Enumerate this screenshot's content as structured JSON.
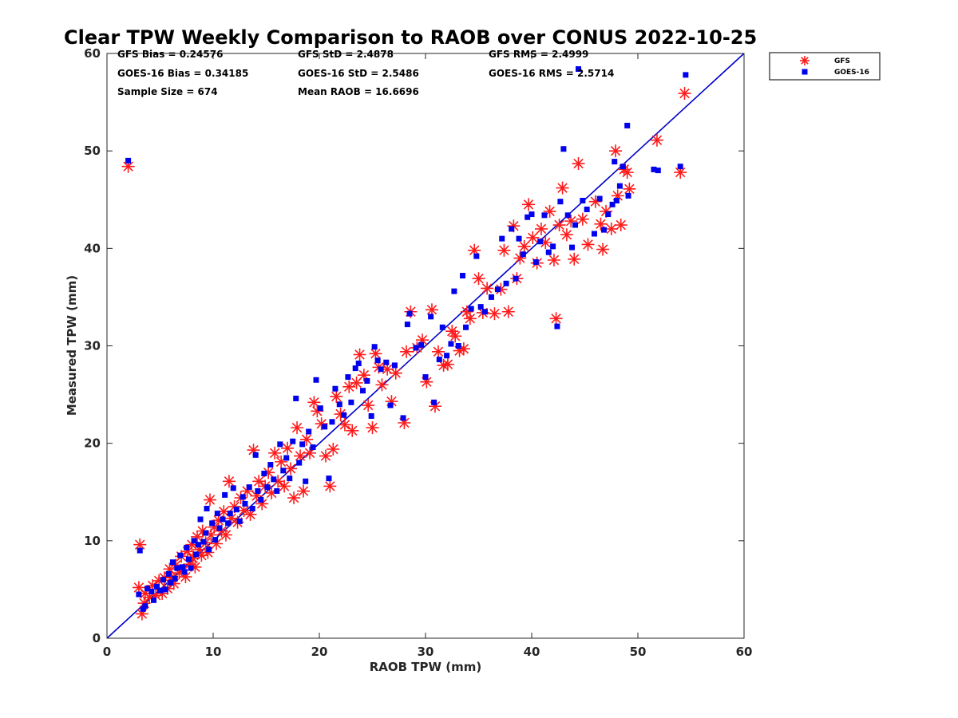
{
  "chart_data": {
    "type": "scatter",
    "title": "Clear TPW Weekly Comparison to RAOB over CONUS 2022-10-25",
    "xlabel": "RAOB TPW (mm)",
    "ylabel": "Measured TPW (mm)",
    "xlim": [
      0,
      60
    ],
    "ylim": [
      0,
      60
    ],
    "x_ticks": [
      "0",
      "10",
      "20",
      "30",
      "40",
      "50",
      "60"
    ],
    "y_ticks": [
      "0",
      "10",
      "20",
      "30",
      "40",
      "50",
      "60"
    ],
    "grid": false,
    "legend_position": "top-right-outside",
    "reference_line": {
      "x": [
        0,
        60
      ],
      "y": [
        0,
        60
      ],
      "color": "#0000cc"
    },
    "stats": [
      "GFS Bias = 0.24576",
      "GFS StD = 2.4878",
      "GFS RMS = 2.4999",
      "GOES-16 Bias = 0.34185",
      "GOES-16 StD = 2.5486",
      "GOES-16 RMS = 2.5714",
      "Sample Size = 674",
      "Mean RAOB = 16.6696"
    ],
    "series": [
      {
        "name": "GFS",
        "marker": "asterisk",
        "color": "#ff1a1a",
        "points": [
          [
            2.0,
            48.4
          ],
          [
            3.1,
            9.6
          ],
          [
            3.0,
            5.2
          ],
          [
            3.3,
            2.5
          ],
          [
            3.5,
            3.6
          ],
          [
            3.6,
            4.6
          ],
          [
            4.0,
            4.2
          ],
          [
            4.3,
            5.4
          ],
          [
            4.6,
            4.4
          ],
          [
            4.9,
            5.9
          ],
          [
            5.2,
            4.6
          ],
          [
            5.4,
            6.2
          ],
          [
            5.7,
            5.1
          ],
          [
            5.9,
            7.1
          ],
          [
            6.1,
            6.3
          ],
          [
            6.3,
            5.6
          ],
          [
            6.5,
            7.5
          ],
          [
            6.8,
            6.7
          ],
          [
            7.0,
            8.4
          ],
          [
            7.2,
            7.0
          ],
          [
            7.4,
            6.3
          ],
          [
            7.6,
            8.9
          ],
          [
            7.8,
            7.6
          ],
          [
            8.0,
            9.6
          ],
          [
            8.1,
            8.2
          ],
          [
            8.3,
            7.3
          ],
          [
            8.5,
            10.4
          ],
          [
            8.7,
            9.1
          ],
          [
            8.9,
            8.5
          ],
          [
            9.0,
            11.0
          ],
          [
            9.3,
            9.8
          ],
          [
            9.5,
            8.8
          ],
          [
            9.7,
            14.2
          ],
          [
            9.8,
            10.6
          ],
          [
            10.1,
            11.4
          ],
          [
            10.3,
            9.7
          ],
          [
            10.5,
            12.1
          ],
          [
            10.8,
            11.0
          ],
          [
            11.0,
            13.0
          ],
          [
            11.2,
            10.6
          ],
          [
            11.5,
            16.1
          ],
          [
            11.7,
            12.3
          ],
          [
            12.0,
            13.5
          ],
          [
            12.3,
            11.9
          ],
          [
            12.6,
            14.4
          ],
          [
            12.9,
            13.1
          ],
          [
            13.2,
            15.1
          ],
          [
            13.5,
            12.7
          ],
          [
            13.8,
            19.3
          ],
          [
            14.1,
            14.6
          ],
          [
            14.3,
            16.1
          ],
          [
            14.6,
            13.8
          ],
          [
            14.9,
            15.6
          ],
          [
            15.2,
            17.0
          ],
          [
            15.5,
            14.9
          ],
          [
            15.8,
            19.0
          ],
          [
            16.1,
            16.1
          ],
          [
            16.4,
            18.1
          ],
          [
            16.7,
            15.6
          ],
          [
            17.0,
            19.5
          ],
          [
            17.3,
            17.4
          ],
          [
            17.6,
            14.4
          ],
          [
            17.9,
            21.6
          ],
          [
            18.2,
            18.7
          ],
          [
            18.5,
            15.1
          ],
          [
            18.8,
            20.4
          ],
          [
            19.1,
            19.0
          ],
          [
            19.5,
            24.2
          ],
          [
            19.8,
            23.3
          ],
          [
            20.2,
            22.0
          ],
          [
            20.6,
            18.7
          ],
          [
            21.0,
            15.6
          ],
          [
            21.3,
            19.4
          ],
          [
            21.6,
            24.8
          ],
          [
            22.0,
            23.0
          ],
          [
            22.4,
            21.9
          ],
          [
            22.8,
            25.8
          ],
          [
            23.1,
            21.3
          ],
          [
            23.5,
            26.2
          ],
          [
            23.8,
            29.1
          ],
          [
            24.2,
            27.0
          ],
          [
            24.6,
            23.9
          ],
          [
            25.0,
            21.6
          ],
          [
            25.3,
            29.2
          ],
          [
            25.6,
            27.8
          ],
          [
            25.9,
            26.0
          ],
          [
            26.4,
            27.6
          ],
          [
            26.8,
            24.3
          ],
          [
            27.2,
            27.2
          ],
          [
            28.0,
            22.1
          ],
          [
            28.2,
            29.4
          ],
          [
            28.6,
            33.5
          ],
          [
            29.2,
            29.8
          ],
          [
            29.7,
            30.6
          ],
          [
            30.1,
            26.3
          ],
          [
            30.6,
            33.7
          ],
          [
            30.9,
            23.8
          ],
          [
            31.2,
            29.4
          ],
          [
            31.7,
            28.0
          ],
          [
            32.1,
            28.1
          ],
          [
            32.5,
            31.5
          ],
          [
            32.8,
            31.0
          ],
          [
            33.2,
            29.5
          ],
          [
            33.6,
            29.7
          ],
          [
            33.9,
            33.5
          ],
          [
            34.2,
            32.8
          ],
          [
            34.6,
            39.8
          ],
          [
            35.0,
            36.9
          ],
          [
            35.4,
            33.4
          ],
          [
            35.8,
            35.9
          ],
          [
            36.5,
            33.3
          ],
          [
            37.1,
            35.8
          ],
          [
            37.4,
            39.8
          ],
          [
            37.8,
            33.5
          ],
          [
            38.3,
            42.3
          ],
          [
            38.6,
            36.9
          ],
          [
            38.9,
            39.0
          ],
          [
            39.3,
            40.2
          ],
          [
            39.7,
            44.5
          ],
          [
            40.1,
            41.1
          ],
          [
            40.5,
            38.5
          ],
          [
            40.9,
            42.0
          ],
          [
            41.3,
            40.6
          ],
          [
            41.7,
            43.8
          ],
          [
            42.1,
            38.8
          ],
          [
            42.3,
            32.8
          ],
          [
            42.6,
            42.4
          ],
          [
            42.9,
            46.2
          ],
          [
            43.3,
            41.4
          ],
          [
            43.7,
            42.8
          ],
          [
            44.0,
            38.9
          ],
          [
            44.4,
            48.7
          ],
          [
            44.8,
            43.0
          ],
          [
            45.3,
            40.4
          ],
          [
            46.0,
            44.8
          ],
          [
            46.5,
            42.5
          ],
          [
            46.7,
            39.9
          ],
          [
            47.0,
            43.8
          ],
          [
            47.5,
            42.0
          ],
          [
            47.9,
            50.0
          ],
          [
            48.1,
            45.4
          ],
          [
            48.4,
            42.4
          ],
          [
            48.7,
            48.1
          ],
          [
            49.0,
            47.8
          ],
          [
            49.2,
            46.1
          ],
          [
            51.8,
            51.1
          ],
          [
            54.0,
            47.8
          ],
          [
            54.4,
            55.9
          ]
        ]
      },
      {
        "name": "GOES-16",
        "marker": "square",
        "color": "#0000ee",
        "points": [
          [
            2.0,
            49.0
          ],
          [
            3.1,
            9.0
          ],
          [
            3.0,
            4.5
          ],
          [
            3.4,
            3.0
          ],
          [
            3.6,
            3.3
          ],
          [
            3.8,
            5.1
          ],
          [
            4.2,
            4.8
          ],
          [
            4.4,
            3.9
          ],
          [
            4.7,
            5.3
          ],
          [
            5.0,
            4.9
          ],
          [
            5.3,
            6.0
          ],
          [
            5.5,
            5.0
          ],
          [
            5.8,
            6.6
          ],
          [
            6.0,
            5.7
          ],
          [
            6.2,
            7.8
          ],
          [
            6.4,
            6.1
          ],
          [
            6.6,
            7.2
          ],
          [
            6.9,
            8.5
          ],
          [
            7.1,
            7.3
          ],
          [
            7.3,
            6.8
          ],
          [
            7.5,
            9.3
          ],
          [
            7.7,
            8.1
          ],
          [
            7.9,
            7.2
          ],
          [
            8.2,
            10.0
          ],
          [
            8.4,
            8.6
          ],
          [
            8.6,
            9.6
          ],
          [
            8.8,
            12.2
          ],
          [
            9.1,
            9.9
          ],
          [
            9.3,
            10.8
          ],
          [
            9.4,
            13.3
          ],
          [
            9.6,
            9.1
          ],
          [
            9.9,
            11.8
          ],
          [
            10.2,
            10.1
          ],
          [
            10.4,
            12.8
          ],
          [
            10.6,
            11.3
          ],
          [
            10.9,
            12.2
          ],
          [
            11.1,
            14.7
          ],
          [
            11.4,
            11.8
          ],
          [
            11.6,
            12.8
          ],
          [
            11.9,
            15.4
          ],
          [
            12.2,
            13.2
          ],
          [
            12.5,
            12.0
          ],
          [
            12.8,
            14.5
          ],
          [
            13.0,
            13.8
          ],
          [
            13.4,
            15.5
          ],
          [
            13.7,
            13.3
          ],
          [
            14.0,
            18.8
          ],
          [
            14.2,
            15.1
          ],
          [
            14.5,
            14.2
          ],
          [
            14.8,
            16.9
          ],
          [
            15.1,
            15.5
          ],
          [
            15.4,
            17.8
          ],
          [
            15.7,
            16.3
          ],
          [
            16.0,
            15.1
          ],
          [
            16.3,
            19.9
          ],
          [
            16.6,
            17.2
          ],
          [
            16.9,
            18.5
          ],
          [
            17.2,
            16.4
          ],
          [
            17.5,
            20.2
          ],
          [
            17.8,
            24.6
          ],
          [
            18.1,
            18.0
          ],
          [
            18.4,
            19.9
          ],
          [
            18.7,
            16.1
          ],
          [
            19.0,
            21.2
          ],
          [
            19.4,
            19.6
          ],
          [
            19.7,
            26.5
          ],
          [
            20.1,
            23.6
          ],
          [
            20.5,
            21.7
          ],
          [
            20.9,
            16.4
          ],
          [
            21.2,
            22.2
          ],
          [
            21.5,
            25.6
          ],
          [
            21.9,
            24.0
          ],
          [
            22.3,
            22.9
          ],
          [
            22.7,
            26.8
          ],
          [
            23.0,
            24.2
          ],
          [
            23.4,
            27.7
          ],
          [
            23.7,
            28.2
          ],
          [
            24.1,
            25.4
          ],
          [
            24.5,
            26.4
          ],
          [
            24.9,
            22.8
          ],
          [
            25.2,
            29.9
          ],
          [
            25.5,
            28.5
          ],
          [
            25.8,
            27.6
          ],
          [
            26.3,
            28.3
          ],
          [
            26.7,
            23.9
          ],
          [
            27.1,
            28.0
          ],
          [
            27.9,
            22.6
          ],
          [
            28.3,
            32.2
          ],
          [
            28.5,
            33.3
          ],
          [
            29.1,
            29.8
          ],
          [
            29.6,
            30.1
          ],
          [
            30.0,
            26.8
          ],
          [
            30.5,
            33.0
          ],
          [
            30.8,
            24.2
          ],
          [
            31.3,
            28.6
          ],
          [
            31.6,
            31.9
          ],
          [
            32.0,
            29.0
          ],
          [
            32.4,
            30.2
          ],
          [
            32.7,
            35.6
          ],
          [
            33.1,
            30.0
          ],
          [
            33.5,
            37.2
          ],
          [
            33.8,
            31.9
          ],
          [
            34.3,
            33.8
          ],
          [
            34.8,
            39.2
          ],
          [
            35.2,
            34.0
          ],
          [
            35.6,
            33.5
          ],
          [
            36.2,
            35.0
          ],
          [
            36.8,
            35.8
          ],
          [
            37.2,
            41.0
          ],
          [
            37.6,
            36.4
          ],
          [
            38.1,
            42.0
          ],
          [
            38.5,
            36.9
          ],
          [
            38.8,
            41.0
          ],
          [
            39.2,
            39.4
          ],
          [
            39.6,
            43.2
          ],
          [
            40.0,
            43.5
          ],
          [
            40.4,
            38.6
          ],
          [
            40.8,
            40.7
          ],
          [
            41.2,
            43.4
          ],
          [
            41.6,
            39.6
          ],
          [
            42.0,
            40.2
          ],
          [
            42.4,
            32.0
          ],
          [
            42.7,
            44.8
          ],
          [
            43.0,
            50.2
          ],
          [
            43.4,
            43.4
          ],
          [
            43.8,
            40.1
          ],
          [
            44.1,
            42.4
          ],
          [
            44.4,
            58.4
          ],
          [
            44.8,
            44.9
          ],
          [
            45.2,
            44.0
          ],
          [
            45.9,
            41.5
          ],
          [
            46.4,
            45.1
          ],
          [
            46.8,
            41.9
          ],
          [
            47.2,
            43.5
          ],
          [
            47.6,
            44.5
          ],
          [
            47.8,
            48.9
          ],
          [
            48.0,
            44.9
          ],
          [
            48.3,
            46.4
          ],
          [
            48.6,
            48.4
          ],
          [
            49.1,
            45.4
          ],
          [
            49.0,
            52.6
          ],
          [
            51.5,
            48.1
          ],
          [
            51.9,
            48.0
          ],
          [
            54.0,
            48.4
          ],
          [
            54.5,
            57.8
          ]
        ]
      }
    ]
  }
}
